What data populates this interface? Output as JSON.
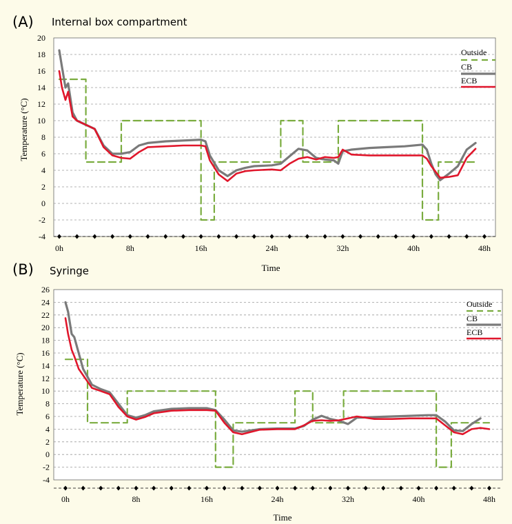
{
  "panels": [
    {
      "letter": "(A)",
      "title": "Internal box compartment"
    },
    {
      "letter": "(B)",
      "title": "Syringe"
    }
  ],
  "colors": {
    "outside": "#7aac3f",
    "cb": "#7a7a7a",
    "ecb": "#e0162b",
    "grid": "#9a9a9a",
    "background": "#fdfbe9",
    "plot_background": "#ffffff"
  },
  "chart_data": [
    {
      "type": "line",
      "title": "Internal box compartment",
      "xlabel": "Time",
      "ylabel": "Temperature (°C)",
      "xlim": [
        0,
        48
      ],
      "ylim": [
        -4,
        20
      ],
      "yticks": [
        -4,
        -2,
        0,
        2,
        4,
        6,
        8,
        10,
        12,
        14,
        16,
        18,
        20
      ],
      "xticks": [
        0,
        8,
        16,
        24,
        32,
        40,
        48
      ],
      "xtick_labels": [
        "0h",
        "8h",
        "16h",
        "24h",
        "32h",
        "40h",
        "48h"
      ],
      "grid": true,
      "legend_position": "top-right",
      "series": [
        {
          "name": "Outside",
          "style": "dashed",
          "x": [
            0,
            3,
            3,
            7,
            7,
            16,
            16,
            17.5,
            17.5,
            25,
            25,
            27.5,
            27.5,
            31.5,
            31.5,
            41,
            41,
            42.8,
            42.8,
            47
          ],
          "y": [
            15,
            15,
            5,
            5,
            10,
            10,
            -2,
            -2,
            5,
            5,
            10,
            10,
            5,
            5,
            10,
            10,
            -2,
            -2,
            5,
            5
          ]
        },
        {
          "name": "CB",
          "style": "solid",
          "x": [
            0,
            0.3,
            0.7,
            1,
            1.5,
            2,
            3,
            4,
            5,
            6,
            7,
            8,
            9,
            10,
            12,
            14,
            16,
            16.5,
            17,
            18,
            19,
            20,
            21,
            22,
            24,
            25,
            26,
            27,
            28,
            29,
            30,
            31,
            31.5,
            32,
            33,
            35,
            37,
            39,
            41,
            41.5,
            42,
            42.5,
            43,
            44,
            45,
            46,
            47
          ],
          "y": [
            18.5,
            16.5,
            14,
            14.5,
            11,
            10,
            9.5,
            9,
            7,
            6,
            6,
            6.2,
            7,
            7.3,
            7.5,
            7.6,
            7.7,
            7.5,
            5.8,
            4,
            3.3,
            4,
            4.3,
            4.5,
            4.6,
            4.8,
            5.7,
            6.6,
            6.4,
            5.5,
            5.3,
            5.2,
            4.8,
            6.3,
            6.5,
            6.7,
            6.8,
            6.9,
            7.1,
            6.5,
            4.8,
            3.5,
            2.8,
            3.6,
            4.5,
            6.5,
            7.3
          ]
        },
        {
          "name": "ECB",
          "style": "solid",
          "x": [
            0,
            0.3,
            0.7,
            1,
            1.5,
            2,
            3,
            4,
            5,
            6,
            7,
            8,
            9,
            10,
            12,
            14,
            16,
            16.5,
            17,
            18,
            19,
            20,
            21,
            22,
            24,
            25,
            26,
            27,
            28,
            29,
            30,
            31,
            31.5,
            32,
            33,
            35,
            37,
            39,
            41,
            41.5,
            42,
            42.5,
            43,
            44,
            45,
            46,
            47
          ],
          "y": [
            16,
            14,
            12.5,
            13.5,
            10.5,
            10,
            9.5,
            9,
            6.8,
            5.8,
            5.5,
            5.4,
            6.2,
            6.8,
            6.9,
            7,
            7,
            6.9,
            5.2,
            3.5,
            2.7,
            3.6,
            3.9,
            4,
            4.1,
            4,
            4.8,
            5.4,
            5.6,
            5.3,
            5.6,
            5.5,
            5.6,
            6.5,
            5.9,
            5.8,
            5.8,
            5.8,
            5.8,
            5.4,
            4.5,
            3.8,
            3.1,
            3.2,
            3.4,
            5.5,
            6.6
          ]
        }
      ]
    },
    {
      "type": "line",
      "title": "Syringe",
      "xlabel": "Time",
      "ylabel": "Temperature (°C)",
      "xlim": [
        0,
        48
      ],
      "ylim": [
        -4,
        26
      ],
      "yticks": [
        -4,
        -2,
        0,
        2,
        4,
        6,
        8,
        10,
        12,
        14,
        16,
        18,
        20,
        22,
        24,
        26
      ],
      "xticks": [
        0,
        8,
        16,
        24,
        32,
        40,
        48
      ],
      "xtick_labels": [
        "0h",
        "8h",
        "16h",
        "24h",
        "32h",
        "40h",
        "48h"
      ],
      "grid": true,
      "legend_position": "top-right",
      "series": [
        {
          "name": "Outside",
          "style": "dashed",
          "x": [
            0,
            2.5,
            2.5,
            7,
            7,
            17,
            17,
            19,
            19,
            26,
            26,
            28,
            28,
            31.5,
            31.5,
            42,
            42,
            43.7,
            43.7,
            48
          ],
          "y": [
            15,
            15,
            5,
            5,
            10,
            10,
            -2,
            -2,
            5,
            5,
            10,
            10,
            5,
            5,
            10,
            10,
            -2,
            -2,
            5,
            5
          ]
        },
        {
          "name": "CB",
          "style": "solid",
          "x": [
            0,
            0.3,
            0.7,
            1,
            1.5,
            2,
            3,
            4,
            5,
            6,
            7,
            8,
            9,
            10,
            12,
            14,
            16,
            17,
            18,
            19,
            20,
            22,
            24,
            26,
            27,
            28,
            29,
            30,
            31,
            32,
            33,
            35,
            37,
            39,
            41,
            42,
            43,
            44,
            45,
            46,
            47
          ],
          "y": [
            24,
            22.5,
            19,
            18.5,
            16,
            13.5,
            11,
            10.3,
            9.8,
            8,
            6.2,
            5.8,
            6.2,
            6.8,
            7.2,
            7.3,
            7.3,
            7,
            5.5,
            3.8,
            3.6,
            4,
            4.1,
            4.1,
            4.5,
            5.5,
            6.1,
            5.6,
            5.3,
            4.8,
            5.8,
            5.9,
            6,
            6.1,
            6.2,
            6.2,
            5.2,
            3.8,
            3.7,
            4.8,
            5.7
          ]
        },
        {
          "name": "ECB",
          "style": "solid",
          "x": [
            0,
            0.3,
            0.7,
            1,
            1.5,
            2,
            3,
            4,
            5,
            6,
            7,
            8,
            9,
            10,
            12,
            14,
            16,
            17,
            18,
            19,
            20,
            22,
            24,
            26,
            27,
            28,
            29,
            30,
            31,
            32,
            33,
            35,
            37,
            39,
            41,
            42,
            43,
            44,
            45,
            46,
            47,
            48
          ],
          "y": [
            21.5,
            19,
            16.5,
            15.5,
            13.5,
            12.5,
            10.5,
            10,
            9.5,
            7.5,
            6,
            5.5,
            5.9,
            6.5,
            6.9,
            7,
            7,
            6.9,
            5,
            3.5,
            3.2,
            3.9,
            4,
            4,
            4.6,
            5.3,
            5.4,
            5.3,
            5.4,
            5.7,
            6,
            5.6,
            5.6,
            5.7,
            5.7,
            5.7,
            4.6,
            3.5,
            3.2,
            4,
            4.2,
            4
          ]
        }
      ]
    }
  ]
}
